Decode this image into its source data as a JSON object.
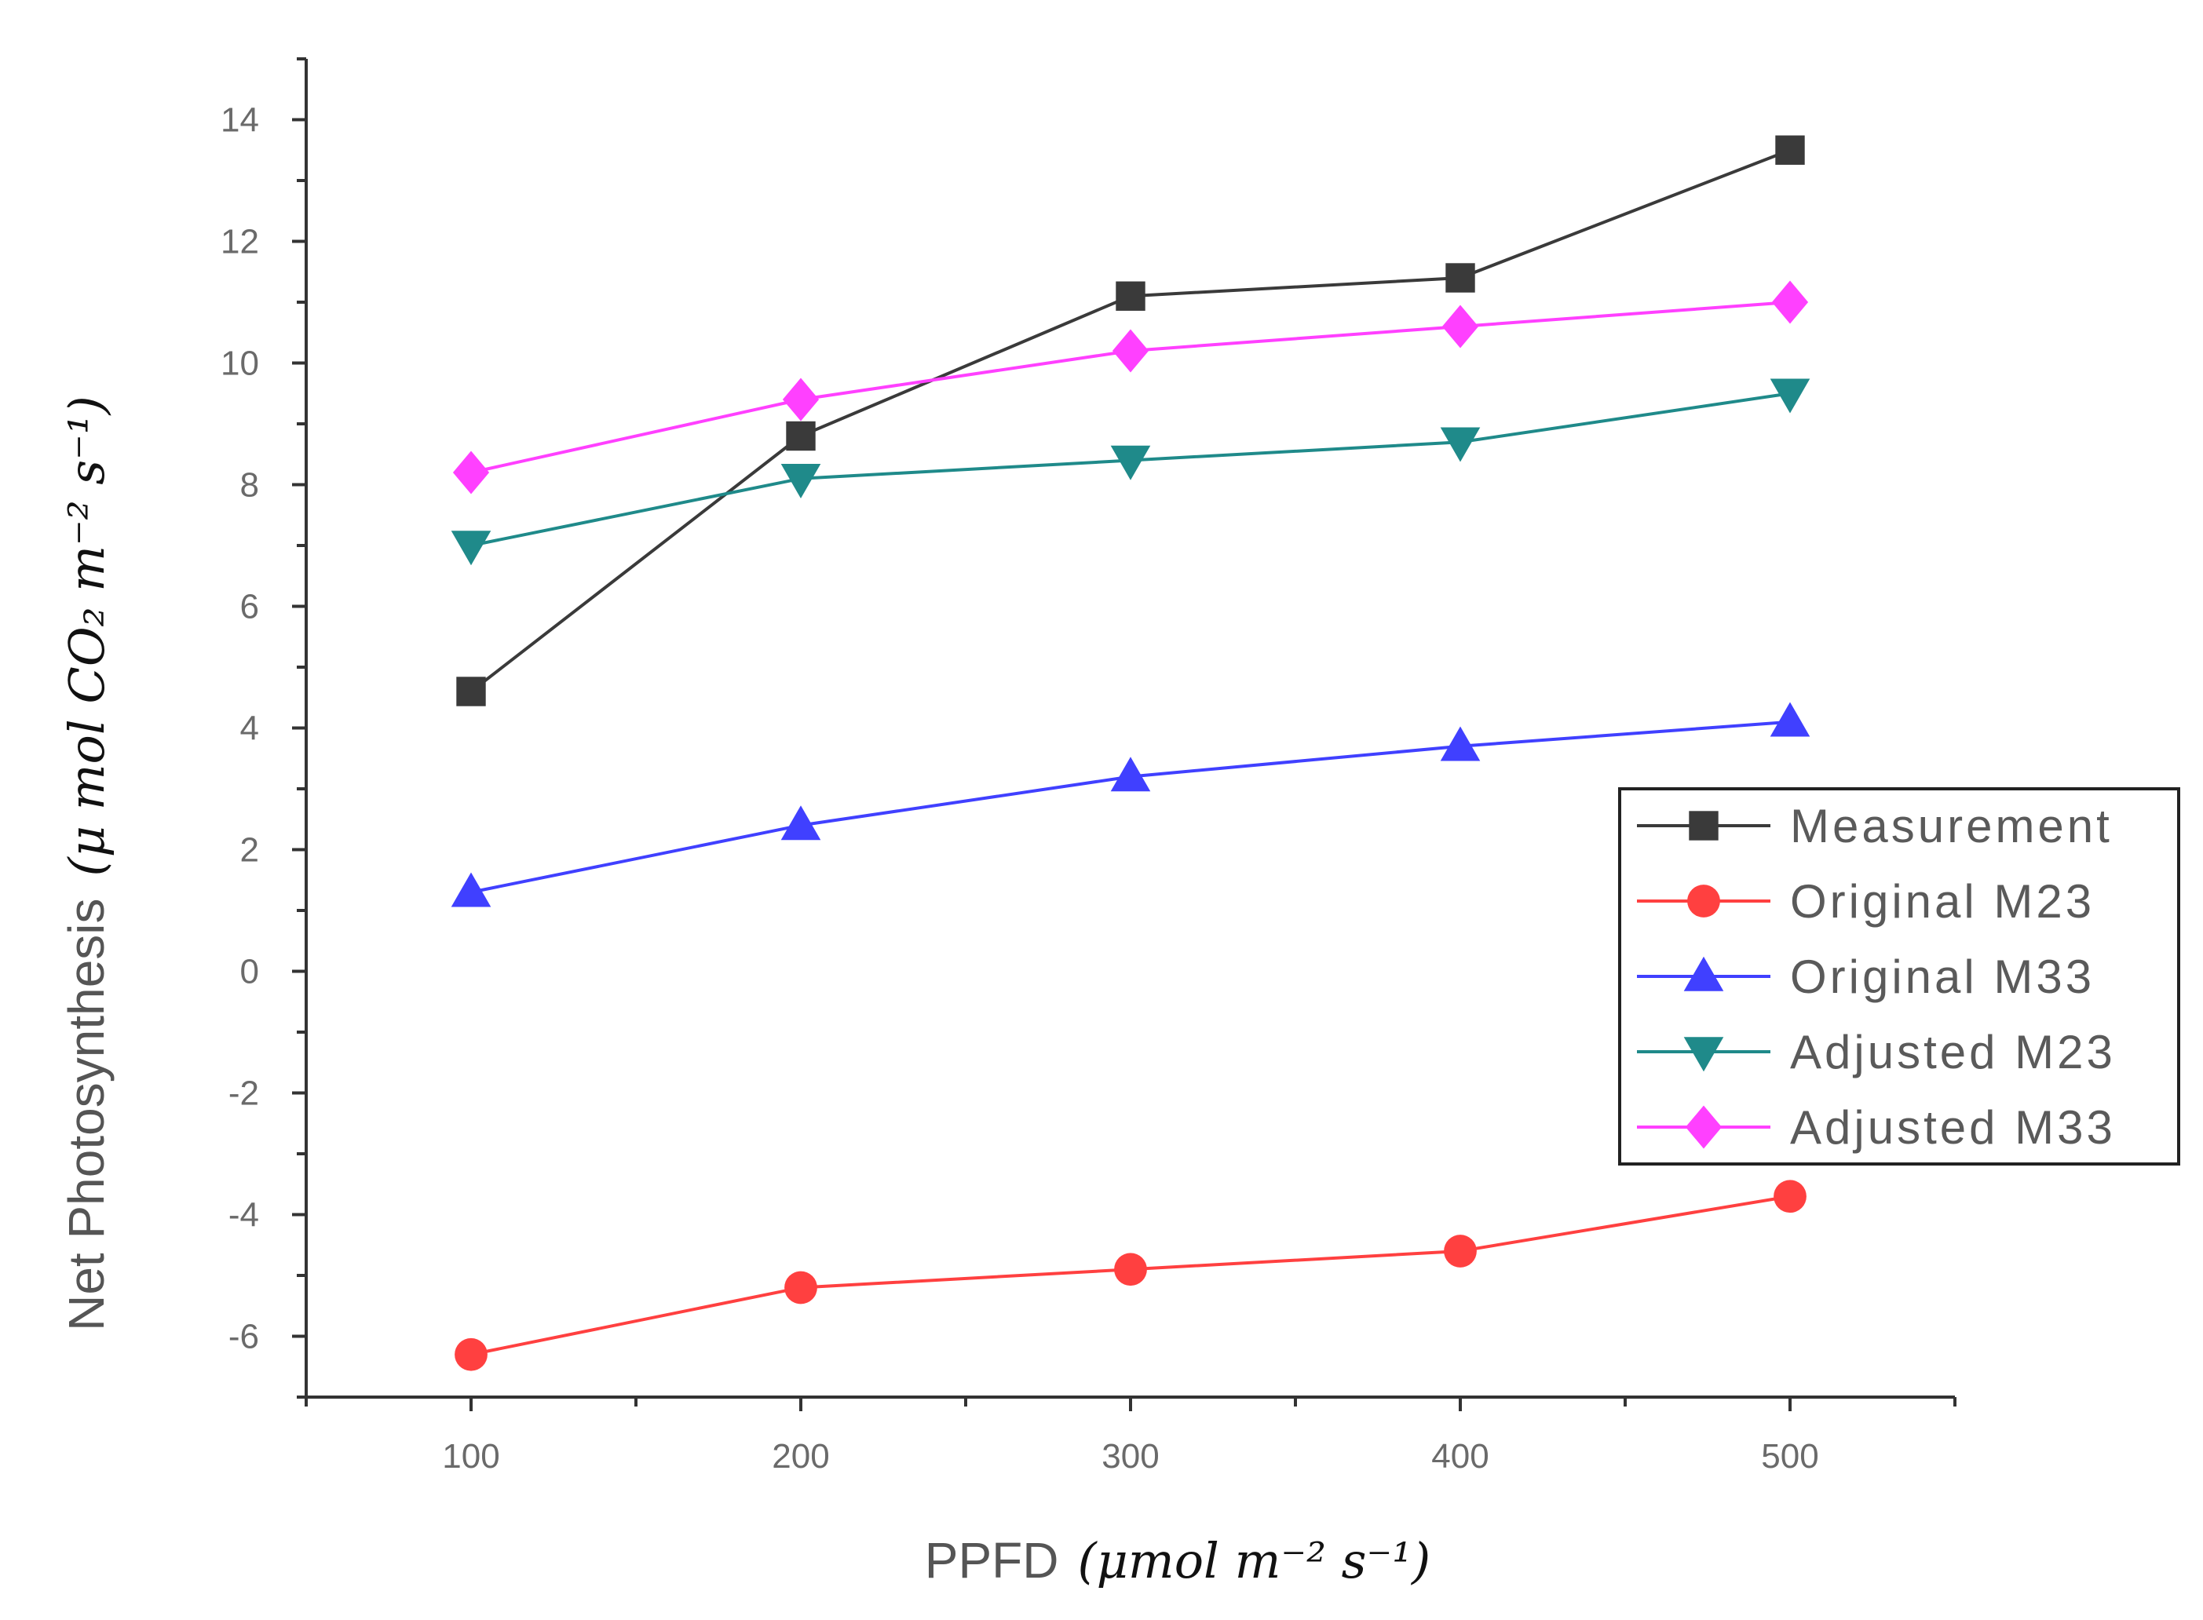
{
  "chart_data": {
    "type": "line",
    "title": "",
    "xlabel": "PPFD",
    "xlabel_unit": "(μmol m⁻² s⁻¹)",
    "ylabel": "Net Photosynthesis",
    "ylabel_unit": "(μ mol CO₂ m⁻² s⁻¹)",
    "x": [
      100,
      200,
      300,
      400,
      500
    ],
    "xlim": [
      50,
      550
    ],
    "ylim": [
      -7,
      15
    ],
    "x_ticks": [
      100,
      200,
      300,
      400,
      500
    ],
    "y_ticks": [
      -6,
      -4,
      -2,
      0,
      2,
      4,
      6,
      8,
      10,
      12,
      14
    ],
    "x_tick_labels": [
      "100",
      "200",
      "300",
      "400",
      "500"
    ],
    "y_tick_labels": [
      "-6",
      "-4",
      "-2",
      "0",
      "2",
      "4",
      "6",
      "8",
      "10",
      "12",
      "14"
    ],
    "grid": false,
    "legend_position": "right",
    "series": [
      {
        "name": "Measurement",
        "marker": "square",
        "color": "#3a3a3a",
        "values": [
          4.6,
          8.8,
          11.1,
          11.4,
          13.5
        ]
      },
      {
        "name": "Original M23",
        "marker": "circle",
        "color": "#ff4040",
        "values": [
          -6.3,
          -5.2,
          -4.9,
          -4.6,
          -3.7
        ]
      },
      {
        "name": "Original M33",
        "marker": "triangle-up",
        "color": "#4040ff",
        "values": [
          1.3,
          2.4,
          3.2,
          3.7,
          4.1
        ]
      },
      {
        "name": "Adjusted M23",
        "marker": "triangle-down",
        "color": "#1f8a8a",
        "values": [
          7.0,
          8.1,
          8.4,
          8.7,
          9.5
        ]
      },
      {
        "name": "Adjusted M33",
        "marker": "diamond",
        "color": "#ff40ff",
        "values": [
          8.2,
          9.4,
          10.2,
          10.6,
          11.0
        ]
      }
    ]
  }
}
